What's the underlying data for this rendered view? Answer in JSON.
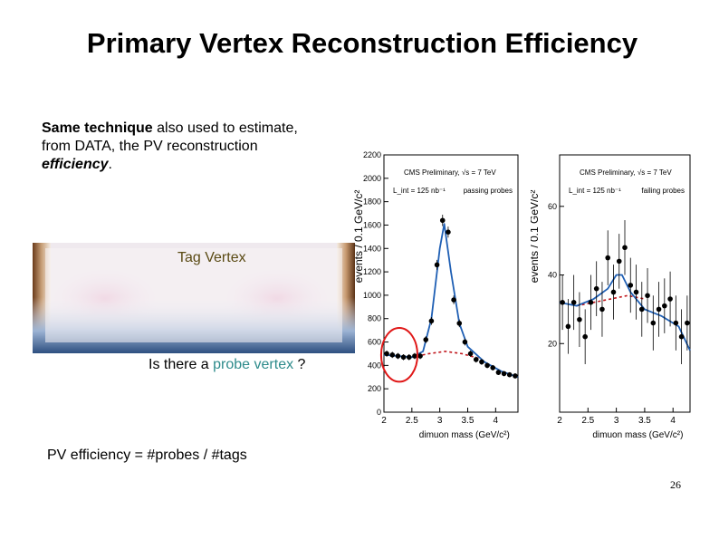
{
  "slide": {
    "title": "Primary Vertex Reconstruction Efficiency",
    "intro_bold": "Same technique",
    "intro_rest1": " also used to estimate, from DATA, the PV reconstruction ",
    "intro_italic": "efficiency",
    "intro_end": ".",
    "tag_vertex": "Tag Vertex",
    "probe_prefix": "Is there a ",
    "probe_highlight": "probe vertex",
    "probe_suffix": " ?",
    "efficiency_formula": "PV efficiency = #probes / #tags",
    "page_number": "26"
  },
  "colors": {
    "probe_highlight": "#2e8b8b",
    "fit_line": "#1f5fb4",
    "background_line": "#c0141a",
    "circle": "#e01818"
  },
  "chart_data": [
    {
      "type": "scatter",
      "title": "CMS Preliminary, √s = 7 TeV",
      "luminosity": "L_int = 125 nb⁻¹",
      "legend": "passing probes",
      "xlabel": "dimuon mass (GeV/c²)",
      "ylabel": "events / 0.1 GeV/c²",
      "xlim": [
        2,
        4.4
      ],
      "ylim": [
        0,
        2200
      ],
      "x_ticks": [
        "2",
        "2.5",
        "3",
        "3.5",
        "4"
      ],
      "y_ticks": [
        "0",
        "200",
        "400",
        "600",
        "800",
        "1000",
        "1200",
        "1400",
        "1600",
        "1800",
        "2000",
        "2200"
      ],
      "points": [
        {
          "x": 2.05,
          "y": 500
        },
        {
          "x": 2.15,
          "y": 490
        },
        {
          "x": 2.25,
          "y": 480
        },
        {
          "x": 2.35,
          "y": 470
        },
        {
          "x": 2.45,
          "y": 470
        },
        {
          "x": 2.55,
          "y": 480
        },
        {
          "x": 2.65,
          "y": 480
        },
        {
          "x": 2.75,
          "y": 620
        },
        {
          "x": 2.85,
          "y": 780
        },
        {
          "x": 2.95,
          "y": 1260
        },
        {
          "x": 3.05,
          "y": 1640
        },
        {
          "x": 3.15,
          "y": 1540
        },
        {
          "x": 3.25,
          "y": 960
        },
        {
          "x": 3.35,
          "y": 760
        },
        {
          "x": 3.45,
          "y": 600
        },
        {
          "x": 3.55,
          "y": 500
        },
        {
          "x": 3.65,
          "y": 450
        },
        {
          "x": 3.75,
          "y": 430
        },
        {
          "x": 3.85,
          "y": 400
        },
        {
          "x": 3.95,
          "y": 380
        },
        {
          "x": 4.05,
          "y": 340
        },
        {
          "x": 4.15,
          "y": 330
        },
        {
          "x": 4.25,
          "y": 320
        },
        {
          "x": 4.35,
          "y": 310
        }
      ],
      "fit": [
        {
          "x": 2.0,
          "y": 490
        },
        {
          "x": 2.5,
          "y": 470
        },
        {
          "x": 2.7,
          "y": 520
        },
        {
          "x": 2.85,
          "y": 800
        },
        {
          "x": 3.0,
          "y": 1400
        },
        {
          "x": 3.08,
          "y": 1610
        },
        {
          "x": 3.2,
          "y": 1200
        },
        {
          "x": 3.35,
          "y": 760
        },
        {
          "x": 3.5,
          "y": 560
        },
        {
          "x": 3.8,
          "y": 430
        },
        {
          "x": 4.1,
          "y": 350
        },
        {
          "x": 4.4,
          "y": 300
        }
      ],
      "background": [
        {
          "x": 2.5,
          "y": 470
        },
        {
          "x": 2.8,
          "y": 500
        },
        {
          "x": 3.1,
          "y": 520
        },
        {
          "x": 3.4,
          "y": 500
        },
        {
          "x": 3.7,
          "y": 460
        }
      ],
      "highlight_circle": {
        "x_range": [
          1.95,
          2.6
        ],
        "y_range": [
          260,
          720
        ]
      }
    },
    {
      "type": "scatter",
      "title": "CMS Preliminary, √s = 7 TeV",
      "luminosity": "L_int = 125 nb⁻¹",
      "legend": "failing probes",
      "xlabel": "dimuon mass (GeV/c²)",
      "ylabel": "events / 0.1 GeV/c²",
      "xlim": [
        2,
        4.3
      ],
      "ylim": [
        0,
        75
      ],
      "x_ticks": [
        "2",
        "2.5",
        "3",
        "3.5",
        "4"
      ],
      "y_ticks": [
        "20",
        "40",
        "60"
      ],
      "points": [
        {
          "x": 2.05,
          "y": 32
        },
        {
          "x": 2.15,
          "y": 25
        },
        {
          "x": 2.25,
          "y": 32
        },
        {
          "x": 2.35,
          "y": 27
        },
        {
          "x": 2.45,
          "y": 22
        },
        {
          "x": 2.55,
          "y": 32
        },
        {
          "x": 2.65,
          "y": 36
        },
        {
          "x": 2.75,
          "y": 30
        },
        {
          "x": 2.85,
          "y": 45
        },
        {
          "x": 2.95,
          "y": 35
        },
        {
          "x": 3.05,
          "y": 44
        },
        {
          "x": 3.15,
          "y": 48
        },
        {
          "x": 3.25,
          "y": 37
        },
        {
          "x": 3.35,
          "y": 35
        },
        {
          "x": 3.45,
          "y": 30
        },
        {
          "x": 3.55,
          "y": 34
        },
        {
          "x": 3.65,
          "y": 26
        },
        {
          "x": 3.75,
          "y": 30
        },
        {
          "x": 3.85,
          "y": 31
        },
        {
          "x": 3.95,
          "y": 33
        },
        {
          "x": 4.05,
          "y": 26
        },
        {
          "x": 4.15,
          "y": 22
        },
        {
          "x": 4.25,
          "y": 26
        }
      ],
      "fit": [
        {
          "x": 2.0,
          "y": 32
        },
        {
          "x": 2.3,
          "y": 31
        },
        {
          "x": 2.6,
          "y": 33
        },
        {
          "x": 2.85,
          "y": 36
        },
        {
          "x": 3.0,
          "y": 40
        },
        {
          "x": 3.1,
          "y": 40
        },
        {
          "x": 3.25,
          "y": 35
        },
        {
          "x": 3.5,
          "y": 30
        },
        {
          "x": 3.8,
          "y": 28
        },
        {
          "x": 4.1,
          "y": 25
        },
        {
          "x": 4.3,
          "y": 18
        }
      ],
      "background": [
        {
          "x": 2.3,
          "y": 31
        },
        {
          "x": 2.6,
          "y": 32
        },
        {
          "x": 2.9,
          "y": 33
        },
        {
          "x": 3.2,
          "y": 34
        },
        {
          "x": 3.5,
          "y": 33
        }
      ]
    }
  ]
}
